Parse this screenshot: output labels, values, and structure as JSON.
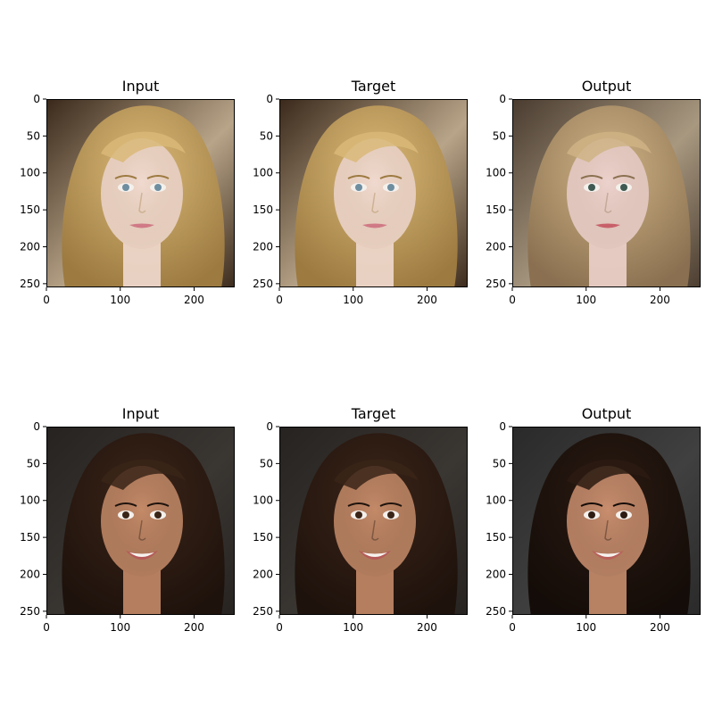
{
  "chart_data": {
    "type": "image-grid",
    "rows": 2,
    "cols": 3,
    "x_ticks": [
      0,
      100,
      200
    ],
    "y_ticks": [
      0,
      50,
      100,
      150,
      200,
      250
    ],
    "xlim": [
      0,
      255
    ],
    "ylim": [
      255,
      0
    ],
    "panels": [
      {
        "title": "Input",
        "row": 0,
        "col": 0,
        "hair": "#d9b878",
        "hair_dark": "#9c7a40",
        "skin": "#f0d9cf",
        "bg": "#b8a488",
        "bg_dark": "#3b2a1c",
        "lips": "#d07a86",
        "eyes": "#6e8ea0",
        "smile": false
      },
      {
        "title": "Target",
        "row": 0,
        "col": 1,
        "hair": "#d9b878",
        "hair_dark": "#9c7a40",
        "skin": "#f0d9cf",
        "bg": "#b8a488",
        "bg_dark": "#3b2a1c",
        "lips": "#d07a86",
        "eyes": "#6e8ea0",
        "smile": false
      },
      {
        "title": "Output",
        "row": 0,
        "col": 2,
        "hair": "#cfb385",
        "hair_dark": "#8a7050",
        "skin": "#ecd2cc",
        "bg": "#a89880",
        "bg_dark": "#4a3c30",
        "lips": "#c8606a",
        "eyes": "#3e5a52",
        "smile": false
      },
      {
        "title": "Input",
        "row": 1,
        "col": 0,
        "hair": "#3a2418",
        "hair_dark": "#1e120c",
        "skin": "#c48a68",
        "bg": "#3a3632",
        "bg_dark": "#262321",
        "lips": "#b45a58",
        "eyes": "#3a2418",
        "smile": true
      },
      {
        "title": "Target",
        "row": 1,
        "col": 1,
        "hair": "#3a2418",
        "hair_dark": "#1e120c",
        "skin": "#c48a68",
        "bg": "#3a3632",
        "bg_dark": "#262321",
        "lips": "#b45a58",
        "eyes": "#3a2418",
        "smile": true
      },
      {
        "title": "Output",
        "row": 1,
        "col": 2,
        "hair": "#2a1a12",
        "hair_dark": "#140c08",
        "skin": "#c98e6e",
        "bg": "#404040",
        "bg_dark": "#2a2a2a",
        "lips": "#b8605a",
        "eyes": "#2e1c12",
        "smile": true
      }
    ]
  }
}
